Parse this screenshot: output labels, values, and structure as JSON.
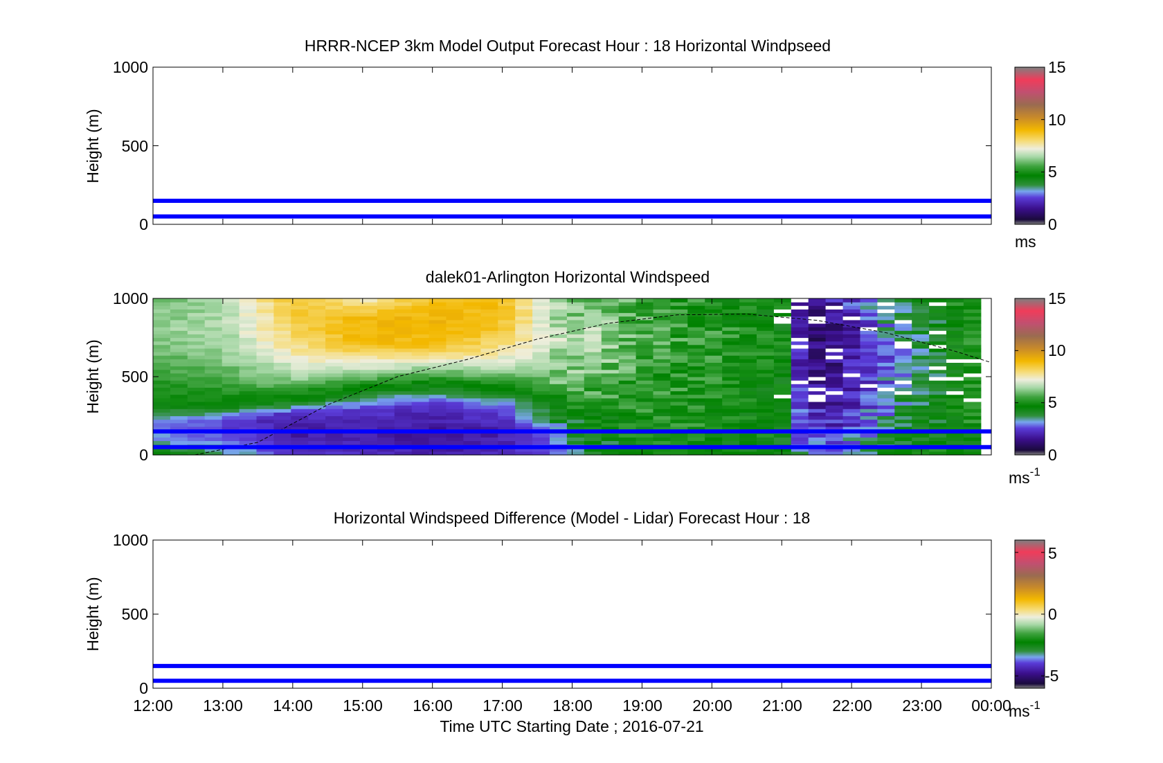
{
  "chart_data": [
    {
      "type": "heatmap",
      "title": "HRRR-NCEP 3km Model Output   Forecast Hour : 18 Horizontal Windpseed",
      "ylabel": "Height (m)",
      "ylim": [
        0,
        1000
      ],
      "yticks": [
        "0",
        "500",
        "1000"
      ],
      "xlim": [
        12,
        24
      ],
      "colorbar": {
        "min": 0,
        "max": 15,
        "ticks": [
          "0",
          "5",
          "10",
          "15"
        ],
        "unit": "ms"
      },
      "reference_lines_m": [
        50,
        150
      ],
      "reference_line_color": "#0000ff",
      "cells": []
    },
    {
      "type": "heatmap",
      "title": "dalek01-Arlington  Horizontal Windspeed",
      "ylabel": "Height (m)",
      "ylim": [
        0,
        1000
      ],
      "yticks": [
        "0",
        "500",
        "1000"
      ],
      "xlim": [
        12,
        24
      ],
      "colorbar": {
        "min": 0,
        "max": 15,
        "ticks": [
          "0",
          "5",
          "10",
          "15"
        ],
        "unit": "ms",
        "unit_exp": "-1"
      },
      "reference_lines_m": [
        50,
        150
      ],
      "reference_line_color": "#0000ff",
      "data_x_range_utc_hours": [
        12.0,
        23.85
      ],
      "boundary_layer_curve": {
        "x_utc_hours": [
          12.6,
          13.5,
          14.5,
          15.5,
          16.5,
          17.5,
          18.5,
          19.5,
          20.5,
          21.5,
          22.5,
          23.5,
          24.0
        ],
        "height_m": [
          0,
          80,
          320,
          500,
          610,
          740,
          840,
          895,
          900,
          860,
          780,
          660,
          590
        ]
      },
      "speed_profiles": {
        "hours": [
          12.0,
          13.0,
          14.0,
          15.0,
          16.0,
          17.0,
          17.8,
          18.3,
          19.0,
          20.0,
          21.0,
          21.3,
          21.7,
          22.2,
          22.7,
          23.2,
          23.85
        ],
        "profiles": [
          {
            "label": "12:00",
            "speeds": [
              [
                0,
                4.5
              ],
              [
                80,
                3.2
              ],
              [
                200,
                2.5
              ],
              [
                320,
                4.5
              ],
              [
                450,
                5.0
              ],
              [
                620,
                5.8
              ],
              [
                800,
                6.3
              ],
              [
                1000,
                6.0
              ]
            ]
          },
          {
            "label": "13:00",
            "speeds": [
              [
                0,
                3.5
              ],
              [
                100,
                2.5
              ],
              [
                220,
                2.2
              ],
              [
                320,
                4.5
              ],
              [
                450,
                5.5
              ],
              [
                620,
                6.2
              ],
              [
                800,
                6.6
              ],
              [
                1000,
                6.5
              ]
            ]
          },
          {
            "label": "14:00",
            "speeds": [
              [
                0,
                2.2
              ],
              [
                120,
                1.5
              ],
              [
                260,
                1.8
              ],
              [
                350,
                4.5
              ],
              [
                500,
                6.5
              ],
              [
                700,
                8.0
              ],
              [
                1000,
                9.0
              ]
            ]
          },
          {
            "label": "15:00",
            "speeds": [
              [
                0,
                2.0
              ],
              [
                150,
                1.5
              ],
              [
                300,
                2.2
              ],
              [
                420,
                4.5
              ],
              [
                560,
                7.0
              ],
              [
                720,
                9.3
              ],
              [
                880,
                9.3
              ],
              [
                1000,
                7.5
              ]
            ]
          },
          {
            "label": "16:00",
            "speeds": [
              [
                0,
                1.6
              ],
              [
                150,
                1.3
              ],
              [
                300,
                1.8
              ],
              [
                430,
                4.0
              ],
              [
                560,
                6.5
              ],
              [
                680,
                9.0
              ],
              [
                850,
                9.5
              ],
              [
                1000,
                9.0
              ]
            ]
          },
          {
            "label": "17:00",
            "speeds": [
              [
                0,
                1.8
              ],
              [
                150,
                1.5
              ],
              [
                300,
                2.4
              ],
              [
                420,
                4.5
              ],
              [
                560,
                6.8
              ],
              [
                750,
                8.5
              ],
              [
                900,
                9.2
              ],
              [
                1000,
                9.0
              ]
            ]
          },
          {
            "label": "17:48",
            "speeds": [
              [
                0,
                2.5
              ],
              [
                150,
                3.0
              ],
              [
                300,
                4.5
              ],
              [
                500,
                6.0
              ],
              [
                700,
                6.8
              ],
              [
                1000,
                6.2
              ]
            ]
          },
          {
            "label": "18:18",
            "speeds": [
              [
                0,
                3.5
              ],
              [
                200,
                4.5
              ],
              [
                500,
                6.0
              ],
              [
                700,
                6.5
              ],
              [
                1000,
                6.2
              ]
            ]
          },
          {
            "label": "19:00",
            "speeds": [
              [
                0,
                4.5
              ],
              [
                300,
                5.0
              ],
              [
                600,
                5.5
              ],
              [
                1000,
                5.6
              ]
            ]
          },
          {
            "label": "20:00",
            "speeds": [
              [
                0,
                4.8
              ],
              [
                400,
                5.0
              ],
              [
                700,
                5.2
              ],
              [
                1000,
                5.0
              ]
            ]
          },
          {
            "label": "21:00",
            "speeds": [
              [
                0,
                4.2
              ],
              [
                300,
                4.4
              ],
              [
                600,
                4.8
              ],
              [
                1000,
                4.5
              ]
            ]
          },
          {
            "label": "21:18",
            "speeds": [
              [
                0,
                3.0
              ],
              [
                200,
                2.0
              ],
              [
                500,
                1.5
              ],
              [
                800,
                1.0
              ],
              [
                1000,
                1.2
              ]
            ]
          },
          {
            "label": "21:42",
            "speeds": [
              [
                0,
                2.5
              ],
              [
                200,
                1.8
              ],
              [
                500,
                1.2
              ],
              [
                800,
                0.8
              ],
              [
                1000,
                1.5
              ]
            ]
          },
          {
            "label": "22:12",
            "speeds": [
              [
                0,
                3.5
              ],
              [
                200,
                2.5
              ],
              [
                500,
                1.8
              ],
              [
                800,
                2.0
              ],
              [
                1000,
                2.8
              ]
            ]
          },
          {
            "label": "22:42",
            "speeds": [
              [
                0,
                4.2
              ],
              [
                300,
                3.5
              ],
              [
                600,
                3.0
              ],
              [
                1000,
                3.8
              ]
            ]
          },
          {
            "label": "23:12",
            "speeds": [
              [
                0,
                4.5
              ],
              [
                300,
                4.0
              ],
              [
                600,
                3.6
              ],
              [
                1000,
                4.2
              ]
            ]
          },
          {
            "label": "23:51",
            "speeds": [
              [
                0,
                4.8
              ],
              [
                300,
                5.0
              ],
              [
                600,
                5.2
              ],
              [
                1000,
                5.5
              ]
            ]
          }
        ]
      }
    },
    {
      "type": "heatmap",
      "title": "Horizontal Windspeed Difference (Model - Lidar) Forecast Hour : 18",
      "ylabel": "Height (m)",
      "ylim": [
        0,
        1000
      ],
      "yticks": [
        "0",
        "500",
        "1000"
      ],
      "xlim": [
        12,
        24
      ],
      "xticks": [
        "12:00",
        "13:00",
        "14:00",
        "15:00",
        "16:00",
        "17:00",
        "18:00",
        "19:00",
        "20:00",
        "21:00",
        "22:00",
        "23:00",
        "00:00"
      ],
      "xlabel": "Time UTC  Starting Date ; 2016-07-21",
      "colorbar": {
        "min": -6,
        "max": 6,
        "ticks": [
          "-5",
          "0",
          "5"
        ],
        "unit": "ms",
        "unit_exp": "-1"
      },
      "reference_lines_m": [
        50,
        150
      ],
      "reference_line_color": "#0000ff",
      "cells": []
    }
  ],
  "colormap_stops": [
    {
      "t": 0.0,
      "color": "#7f7f7f"
    },
    {
      "t": 0.03,
      "color": "#1a0a3c"
    },
    {
      "t": 0.1,
      "color": "#3b0f8c"
    },
    {
      "t": 0.17,
      "color": "#5a3cd8"
    },
    {
      "t": 0.21,
      "color": "#78a6ee"
    },
    {
      "t": 0.25,
      "color": "#2f8f3a"
    },
    {
      "t": 0.31,
      "color": "#008200"
    },
    {
      "t": 0.37,
      "color": "#3fa33f"
    },
    {
      "t": 0.43,
      "color": "#a8d8a8"
    },
    {
      "t": 0.48,
      "color": "#eeeedd"
    },
    {
      "t": 0.53,
      "color": "#f6dc78"
    },
    {
      "t": 0.6,
      "color": "#f3b800"
    },
    {
      "t": 0.68,
      "color": "#c88a2a"
    },
    {
      "t": 0.76,
      "color": "#9a6b50"
    },
    {
      "t": 0.84,
      "color": "#c05070"
    },
    {
      "t": 0.92,
      "color": "#f03c5a"
    },
    {
      "t": 1.0,
      "color": "#7f7f7f"
    }
  ]
}
